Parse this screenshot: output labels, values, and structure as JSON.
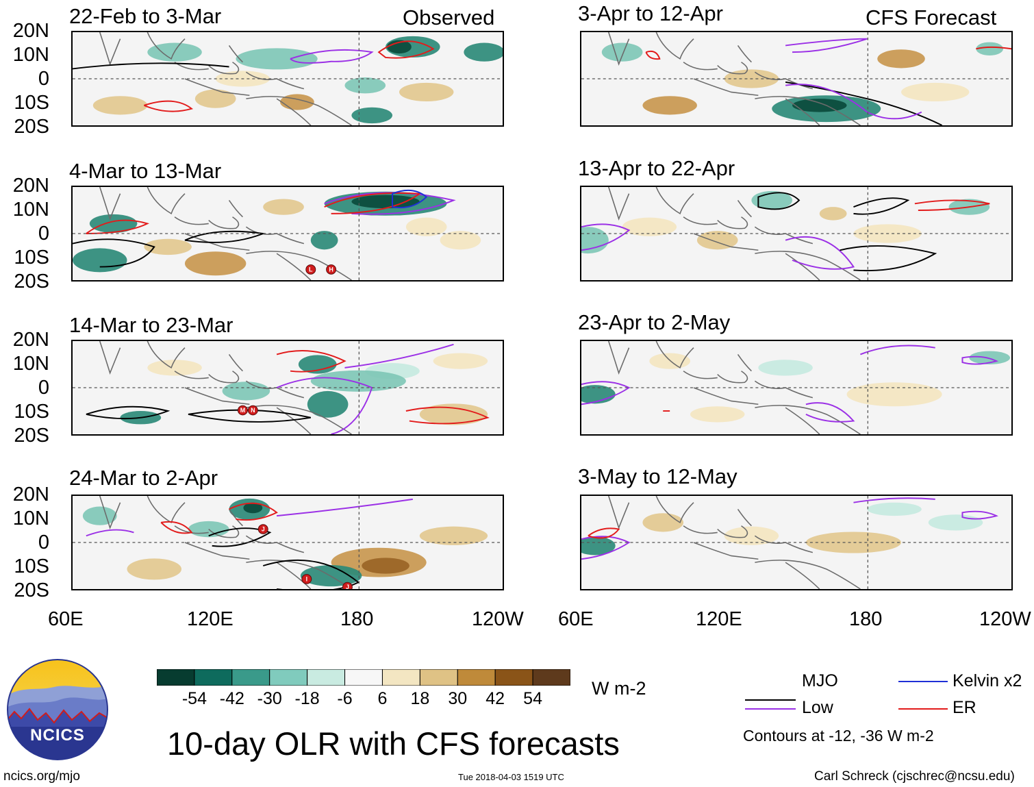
{
  "figure_title": "10-day OLR with CFS forecasts",
  "column_tags": {
    "left": "Observed",
    "right": "CFS Forecast"
  },
  "panels": [
    {
      "title": "22-Feb to 3-Mar"
    },
    {
      "title": "4-Mar to 13-Mar"
    },
    {
      "title": "14-Mar to 23-Mar"
    },
    {
      "title": "24-Mar to 2-Apr"
    },
    {
      "title": "3-Apr to 12-Apr"
    },
    {
      "title": "13-Apr to 22-Apr"
    },
    {
      "title": "23-Apr to 2-May"
    },
    {
      "title": "3-May to 12-May"
    }
  ],
  "lat_labels": [
    "20N",
    "10N",
    "0",
    "10S",
    "20S"
  ],
  "lon_labels": [
    "60E",
    "120E",
    "180",
    "120W"
  ],
  "colorbar": {
    "ticks": [
      "-54",
      "-42",
      "-30",
      "-18",
      "-6",
      "6",
      "18",
      "30",
      "42",
      "54"
    ],
    "colors": [
      "#073c30",
      "#0e6b5d",
      "#3a9a8a",
      "#80cbbd",
      "#c9ebe1",
      "#f7f7f7",
      "#f3e6c2",
      "#dfc285",
      "#bf8a3a",
      "#8a5418",
      "#5e3a1c"
    ],
    "unit": "W m-2"
  },
  "legend": {
    "items": [
      {
        "label": "MJO",
        "color": "#000000"
      },
      {
        "label": "Kelvin x2",
        "color": "#1f2fd6"
      },
      {
        "label": "Low",
        "color": "#9b30e6"
      },
      {
        "label": "ER",
        "color": "#e21b1b"
      }
    ],
    "note": "Contours at -12, -36 W m-2"
  },
  "logo_text": "NCICS",
  "footer": {
    "left": "ncics.org/mjo",
    "center": "Tue 2018-04-03 1519 UTC",
    "right": "Carl Schreck (cjschrec@ncsu.edu)"
  },
  "storm_markers": [
    {
      "panel": 1,
      "letter": "L"
    },
    {
      "panel": 1,
      "letter": "H"
    },
    {
      "panel": 2,
      "letter": "M"
    },
    {
      "panel": 2,
      "letter": "N"
    },
    {
      "panel": 3,
      "letter": "J"
    },
    {
      "panel": 3,
      "letter": "I"
    },
    {
      "panel": 3,
      "letter": "J"
    }
  ]
}
